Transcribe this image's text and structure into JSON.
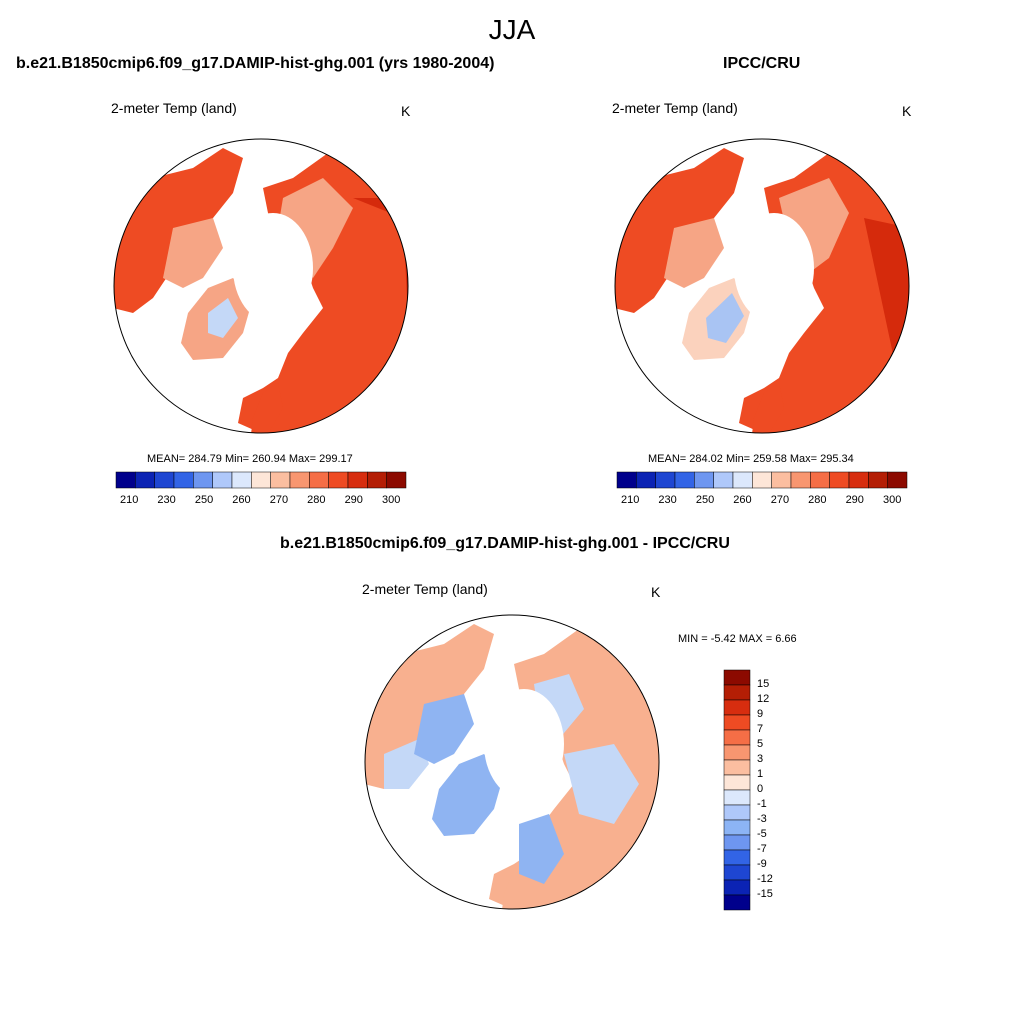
{
  "title": "JJA",
  "panels": [
    {
      "title": "b.e21.B1850cmip6.f09_g17.DAMIP-hist-ghg.001 (yrs 1980-2004)",
      "variable": "2-meter Temp (land)",
      "units": "K",
      "stats": "MEAN= 284.79  Min= 260.94  Max= 299.17"
    },
    {
      "title": "IPCC/CRU",
      "variable": "2-meter Temp (land)",
      "units": "K",
      "stats": "MEAN= 284.02  Min= 259.58  Max= 295.34"
    },
    {
      "title": "b.e21.B1850cmip6.f09_g17.DAMIP-hist-ghg.001 - IPCC/CRU",
      "variable": "2-meter Temp (land)",
      "units": "K",
      "stats": "MIN =  -5.42 MAX =   6.66"
    }
  ],
  "colorbar_abs": {
    "labels": [
      "210",
      "230",
      "250",
      "260",
      "270",
      "280",
      "290",
      "300"
    ],
    "colors": [
      "#00008c",
      "#0b23b4",
      "#1e46d2",
      "#3264e6",
      "#6e96f0",
      "#afc8fa",
      "#dce8fc",
      "#fde6d8",
      "#fbbea0",
      "#f89670",
      "#f56e46",
      "#ee4b23",
      "#d72d0f",
      "#b41e05",
      "#8c0a00"
    ]
  },
  "colorbar_diff": {
    "labels": [
      "15",
      "12",
      "9",
      "7",
      "5",
      "3",
      "1",
      "0",
      "-1",
      "-3",
      "-5",
      "-7",
      "-9",
      "-12",
      "-15"
    ],
    "colors": [
      "#8c0a00",
      "#b41e05",
      "#d72d0f",
      "#ee4b23",
      "#f56e46",
      "#f89670",
      "#fbbea0",
      "#fde6d8",
      "#dce8fc",
      "#afc8fa",
      "#8cb4f5",
      "#6e96f0",
      "#3264e6",
      "#1e46d2",
      "#0b23b4",
      "#00008c"
    ]
  },
  "map_colors": {
    "warm_dark": "#d52a0c",
    "warm_mid": "#ee4b23",
    "warm_light": "#f6a585",
    "cold_light": "#c4d8f7",
    "diff_pos": "#f8b08f",
    "diff_neg": "#8fb4f2"
  }
}
